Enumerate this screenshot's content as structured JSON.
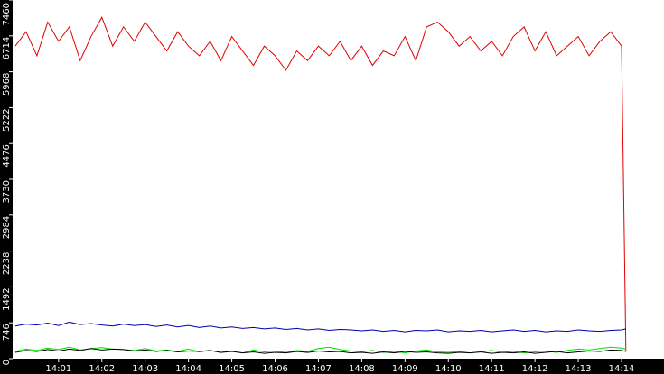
{
  "chart_data": {
    "type": "line",
    "x": [
      0,
      0.25,
      0.5,
      0.75,
      1,
      1.25,
      1.5,
      1.75,
      2,
      2.25,
      2.5,
      2.75,
      3,
      3.25,
      3.5,
      3.75,
      4,
      4.25,
      4.5,
      4.75,
      5,
      5.25,
      5.5,
      5.75,
      6,
      6.25,
      6.5,
      6.75,
      7,
      7.25,
      7.5,
      7.75,
      8,
      8.25,
      8.5,
      8.75,
      9,
      9.25,
      9.5,
      9.75,
      10,
      10.25,
      10.5,
      10.75,
      11,
      11.25,
      11.5,
      11.75,
      12,
      12.25,
      12.5,
      12.75,
      13,
      13.25,
      13.5,
      13.75,
      14,
      14.1
    ],
    "series": [
      {
        "color": "#e00000",
        "values": [
          6500,
          6800,
          6300,
          7000,
          6600,
          6900,
          6200,
          6700,
          7100,
          6500,
          6900,
          6600,
          7000,
          6700,
          6400,
          6800,
          6500,
          6300,
          6600,
          6200,
          6700,
          6400,
          6100,
          6500,
          6300,
          6000,
          6400,
          6200,
          6500,
          6300,
          6600,
          6200,
          6500,
          6100,
          6400,
          6300,
          6700,
          6200,
          6900,
          7000,
          6800,
          6500,
          6700,
          6400,
          6600,
          6300,
          6700,
          6900,
          6400,
          6800,
          6300,
          6500,
          6700,
          6300,
          6600,
          6800,
          6500,
          150
        ]
      },
      {
        "color": "#0000b0",
        "values": [
          680,
          720,
          700,
          740,
          690,
          760,
          710,
          730,
          700,
          680,
          720,
          690,
          710,
          670,
          700,
          660,
          690,
          650,
          680,
          640,
          660,
          630,
          650,
          620,
          640,
          610,
          630,
          600,
          620,
          590,
          610,
          600,
          580,
          600,
          570,
          590,
          560,
          590,
          580,
          600,
          560,
          580,
          570,
          590,
          560,
          580,
          600,
          570,
          590,
          560,
          580,
          570,
          600,
          580,
          570,
          590,
          600,
          620
        ]
      },
      {
        "color": "#00e000",
        "values": [
          150,
          200,
          170,
          220,
          190,
          240,
          180,
          210,
          230,
          200,
          190,
          170,
          210,
          160,
          180,
          150,
          200,
          140,
          170,
          130,
          160,
          120,
          180,
          140,
          160,
          130,
          170,
          150,
          210,
          240,
          190,
          160,
          140,
          170,
          130,
          150,
          120,
          160,
          180,
          140,
          130,
          150,
          120,
          140,
          170,
          130,
          150,
          120,
          140,
          160,
          130,
          170,
          200,
          180,
          210,
          240,
          220,
          200
        ]
      },
      {
        "color": "#000000",
        "values": [
          130,
          170,
          150,
          190,
          160,
          200,
          170,
          210,
          180,
          200,
          190,
          160,
          180,
          150,
          170,
          140,
          160,
          150,
          170,
          130,
          150,
          120,
          140,
          110,
          130,
          120,
          150,
          130,
          160,
          140,
          150,
          120,
          130,
          110,
          140,
          120,
          150,
          130,
          140,
          120,
          110,
          130,
          120,
          140,
          110,
          130,
          120,
          140,
          110,
          130,
          150,
          120,
          140,
          160,
          150,
          180,
          170,
          150
        ]
      }
    ],
    "xlim": [
      -0.06,
      14.98
    ],
    "xticks": [
      {
        "value": 1,
        "label": "14:01"
      },
      {
        "value": 2,
        "label": "14:02"
      },
      {
        "value": 3,
        "label": "14:03"
      },
      {
        "value": 4,
        "label": "14:04"
      },
      {
        "value": 5,
        "label": "14:05"
      },
      {
        "value": 6,
        "label": "14:06"
      },
      {
        "value": 7,
        "label": "14:07"
      },
      {
        "value": 8,
        "label": "14:08"
      },
      {
        "value": 9,
        "label": "14:09"
      },
      {
        "value": 10,
        "label": "14:10"
      },
      {
        "value": 11,
        "label": "14:11"
      },
      {
        "value": 12,
        "label": "14:12"
      },
      {
        "value": 13,
        "label": "14:13"
      },
      {
        "value": 14,
        "label": "14:14"
      }
    ],
    "ylim": [
      0,
      7460
    ],
    "yticks": [
      0,
      746,
      1492,
      2238,
      2984,
      3730,
      4476,
      5222,
      5968,
      6714,
      7460
    ]
  }
}
